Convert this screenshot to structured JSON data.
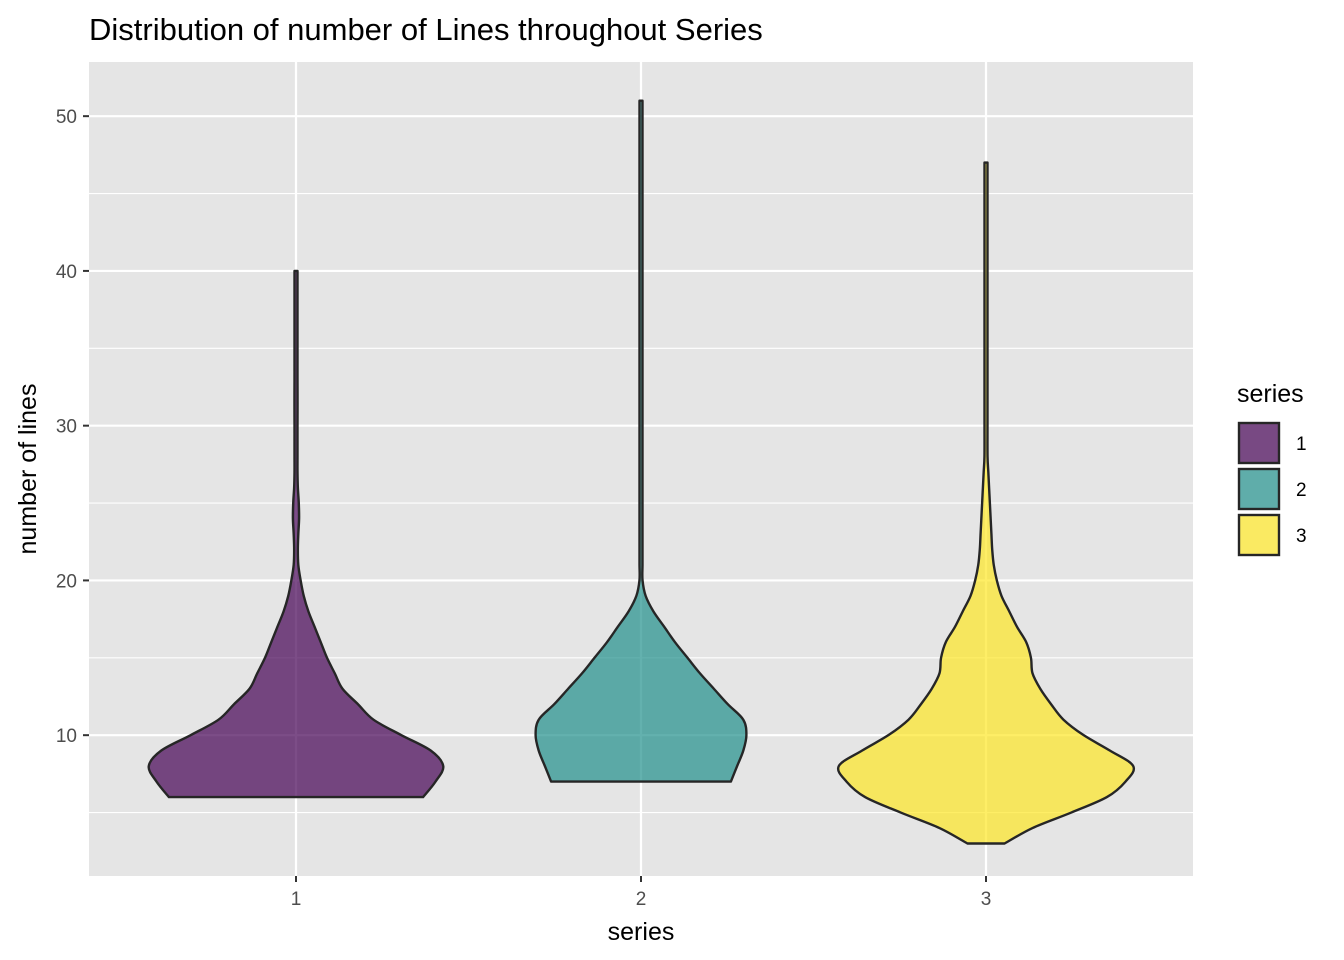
{
  "chart_data": {
    "type": "violin",
    "title": "Distribution of number of Lines throughout Series",
    "xlabel": "series",
    "ylabel": "number of lines",
    "categories": [
      "1",
      "2",
      "3"
    ],
    "ylim": [
      0.9,
      53.5
    ],
    "yticks": [
      10,
      20,
      30,
      40,
      50
    ],
    "yticks_labels": [
      "10",
      "20",
      "30",
      "40",
      "50"
    ],
    "grid": true,
    "panel_background": "#e5e5e5",
    "grid_color": "#ffffff",
    "outline_color": "#262626",
    "fill_opacity": 0.7,
    "legend": {
      "title": "series",
      "position": "right",
      "entries": [
        {
          "label": "1",
          "color": "#440154"
        },
        {
          "label": "2",
          "color": "#21908c"
        },
        {
          "label": "3",
          "color": "#fde725"
        }
      ]
    },
    "series": [
      {
        "name": "1",
        "color": "#440154",
        "min": 6,
        "max": 40,
        "profile": [
          [
            6,
            0.82
          ],
          [
            7,
            0.9
          ],
          [
            8,
            0.95
          ],
          [
            9,
            0.87
          ],
          [
            10,
            0.68
          ],
          [
            11,
            0.5
          ],
          [
            12,
            0.4
          ],
          [
            13,
            0.3
          ],
          [
            14,
            0.25
          ],
          [
            15,
            0.2
          ],
          [
            16,
            0.16
          ],
          [
            17,
            0.12
          ],
          [
            18,
            0.08
          ],
          [
            19,
            0.05
          ],
          [
            20,
            0.03
          ],
          [
            21,
            0.015
          ],
          [
            22,
            0.012
          ],
          [
            23,
            0.015
          ],
          [
            24,
            0.02
          ],
          [
            25,
            0.018
          ],
          [
            26,
            0.012
          ],
          [
            27,
            0.004
          ],
          [
            28,
            0.003
          ],
          [
            29,
            0.005
          ],
          [
            30,
            0.008
          ],
          [
            31,
            0.01
          ],
          [
            32,
            0.01
          ],
          [
            33,
            0.008
          ],
          [
            34,
            0.005
          ],
          [
            35,
            0.003
          ],
          [
            36,
            0.003
          ],
          [
            37,
            0.005
          ],
          [
            38,
            0.007
          ],
          [
            39,
            0.008
          ],
          [
            40,
            0.008
          ]
        ]
      },
      {
        "name": "2",
        "color": "#21908c",
        "min": 7,
        "max": 51,
        "profile": [
          [
            7,
            0.58
          ],
          [
            8,
            0.62
          ],
          [
            9,
            0.66
          ],
          [
            10,
            0.68
          ],
          [
            11,
            0.66
          ],
          [
            12,
            0.56
          ],
          [
            13,
            0.47
          ],
          [
            14,
            0.38
          ],
          [
            15,
            0.3
          ],
          [
            16,
            0.22
          ],
          [
            17,
            0.15
          ],
          [
            18,
            0.08
          ],
          [
            19,
            0.03
          ],
          [
            20,
            0.01
          ],
          [
            21,
            0.005
          ],
          [
            22,
            0.0
          ],
          [
            23,
            0.0
          ],
          [
            24,
            0.0
          ],
          [
            25,
            0.0
          ],
          [
            26,
            0.0
          ],
          [
            27,
            0.0
          ],
          [
            28,
            0.0
          ],
          [
            30,
            0.0
          ],
          [
            32,
            0.0
          ],
          [
            34,
            0.0
          ],
          [
            36,
            0.0
          ],
          [
            38,
            0.0
          ],
          [
            40,
            0.0
          ],
          [
            42,
            0.0
          ],
          [
            44,
            0.0
          ],
          [
            46,
            0.0
          ],
          [
            47,
            0.0
          ],
          [
            48,
            0.0
          ],
          [
            49,
            0.0
          ],
          [
            50,
            0.0
          ],
          [
            51,
            0.0
          ]
        ]
      },
      {
        "name": "3",
        "color": "#fde725",
        "min": 3,
        "max": 47,
        "profile": [
          [
            3,
            0.12
          ],
          [
            4,
            0.3
          ],
          [
            5,
            0.55
          ],
          [
            6,
            0.78
          ],
          [
            7,
            0.9
          ],
          [
            8,
            0.95
          ],
          [
            9,
            0.8
          ],
          [
            10,
            0.63
          ],
          [
            11,
            0.5
          ],
          [
            12,
            0.42
          ],
          [
            13,
            0.35
          ],
          [
            14,
            0.3
          ],
          [
            15,
            0.29
          ],
          [
            16,
            0.26
          ],
          [
            17,
            0.2
          ],
          [
            18,
            0.15
          ],
          [
            19,
            0.1
          ],
          [
            20,
            0.07
          ],
          [
            21,
            0.05
          ],
          [
            22,
            0.04
          ],
          [
            23,
            0.035
          ],
          [
            24,
            0.03
          ],
          [
            25,
            0.025
          ],
          [
            26,
            0.02
          ],
          [
            27,
            0.015
          ],
          [
            28,
            0.01
          ],
          [
            30,
            0.006
          ],
          [
            32,
            0.003
          ],
          [
            34,
            0.0
          ],
          [
            36,
            0.0
          ],
          [
            38,
            0.0
          ],
          [
            40,
            0.0
          ],
          [
            42,
            0.0
          ],
          [
            44,
            0.0
          ],
          [
            46,
            0.0
          ],
          [
            47,
            0.0
          ]
        ]
      }
    ]
  }
}
